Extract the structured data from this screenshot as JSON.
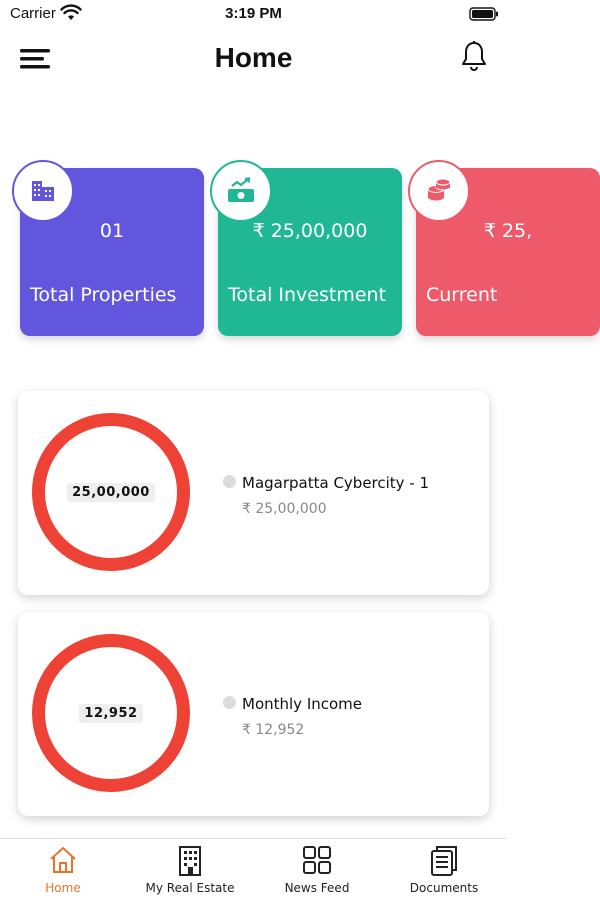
{
  "status_bar": {
    "carrier": "Carrier",
    "time": "3:19 PM"
  },
  "header": {
    "title": "Home",
    "menu_icon": "hamburger-menu-icon",
    "bell_icon": "bell-icon"
  },
  "stat_cards": [
    {
      "value": "01",
      "label": "Total Properties",
      "color": "#6356de",
      "icon": "building-icon"
    },
    {
      "value": "₹ 25,00,000",
      "label": "Total Investment",
      "color": "#20b894",
      "icon": "money-growth-icon"
    },
    {
      "value": "₹ 25,",
      "label": "Current",
      "color": "#ee5a6a",
      "icon": "coins-icon"
    }
  ],
  "summary_cards": [
    {
      "center_value": "25,00,000",
      "legend_title": "Magarpatta Cybercity - 1",
      "legend_amount": "₹ 25,00,000",
      "ring_color": "#ee4236"
    },
    {
      "center_value": "12,952",
      "legend_title": "Monthly Income",
      "legend_amount": "₹ 12,952",
      "ring_color": "#ee4236"
    }
  ],
  "bottom_nav": [
    {
      "label": "Home",
      "icon": "home-icon",
      "active": true
    },
    {
      "label": "My Real Estate",
      "icon": "building-icon",
      "active": false
    },
    {
      "label": "News Feed",
      "icon": "grid-icon",
      "active": false
    },
    {
      "label": "Documents",
      "icon": "documents-icon",
      "active": false
    }
  ],
  "colors": {
    "accent": "#e8732e",
    "ring": "#ee4236"
  }
}
